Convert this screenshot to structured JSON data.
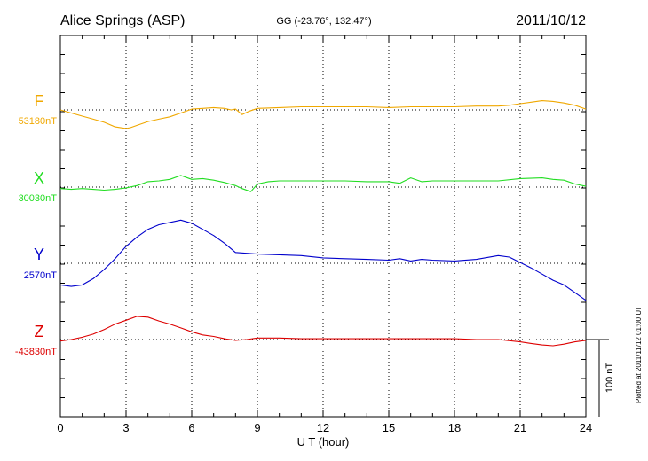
{
  "header": {
    "station": "Alice Springs (ASP)",
    "coords": "GG (-23.76°, 132.47°)",
    "date": "2011/10/12"
  },
  "footer": {
    "plotted_note": "Plotted at 2011/11/12 01:00 UT"
  },
  "chart_data": {
    "type": "line",
    "title": "Alice Springs (ASP)",
    "xlabel": "U T (hour)",
    "xlim": [
      0,
      24
    ],
    "xticks": [
      "0",
      "3",
      "6",
      "9",
      "12",
      "15",
      "18",
      "21",
      "24"
    ],
    "scale_bar": {
      "label": "100 nT",
      "value_nT": 100
    },
    "series": [
      {
        "name": "F",
        "baseline_label": "53180nT",
        "color": "#f0a800",
        "x": [
          0,
          0.5,
          1,
          1.5,
          2,
          2.5,
          3,
          3.2,
          3.5,
          4,
          4.5,
          5,
          5.5,
          6,
          6.5,
          7,
          7.5,
          7.8,
          8,
          8.3,
          8.6,
          9,
          10,
          11,
          12,
          13,
          14,
          15,
          16,
          17,
          18,
          19,
          20,
          20.5,
          21,
          21.5,
          22,
          22.5,
          23,
          23.5,
          24
        ],
        "values": [
          0,
          -4,
          -8,
          -12,
          -16,
          -22,
          -24,
          -23,
          -20,
          -15,
          -12,
          -9,
          -4,
          1,
          2,
          3,
          2,
          0,
          1,
          -6,
          -2,
          2,
          3,
          4,
          4,
          4,
          4,
          3,
          4,
          4,
          4,
          5,
          5,
          6,
          8,
          10,
          12,
          11,
          9,
          6,
          1
        ]
      },
      {
        "name": "X",
        "baseline_label": "30030nT",
        "color": "#22dd22",
        "x": [
          0,
          0.5,
          1,
          1.5,
          2,
          2.5,
          3,
          3.5,
          4,
          4.5,
          5,
          5.5,
          6,
          6.5,
          7,
          7.5,
          8,
          8.3,
          8.7,
          9,
          9.5,
          10,
          11,
          12,
          13,
          14,
          15,
          15.5,
          16,
          16.5,
          17,
          18,
          19,
          20,
          21,
          22,
          22.5,
          23,
          23.5,
          24
        ],
        "values": [
          -2,
          -3,
          -2,
          -3,
          -4,
          -3,
          -1,
          2,
          7,
          8,
          10,
          15,
          10,
          11,
          9,
          6,
          2,
          -2,
          -6,
          4,
          7,
          8,
          8,
          8,
          8,
          7,
          7,
          5,
          12,
          7,
          8,
          8,
          8,
          8,
          11,
          12,
          10,
          9,
          4,
          1
        ]
      },
      {
        "name": "Y",
        "baseline_label": "2570nT",
        "color": "#0000cc",
        "x": [
          0,
          0.5,
          1,
          1.5,
          2,
          2.5,
          3,
          3.5,
          4,
          4.5,
          5,
          5.5,
          6,
          6.5,
          7,
          7.5,
          8,
          8.5,
          9,
          10,
          11,
          12,
          13,
          14,
          15,
          15.5,
          16,
          16.5,
          17,
          18,
          19,
          20,
          20.5,
          21,
          21.5,
          22,
          22.5,
          23,
          23.5,
          24
        ],
        "values": [
          -28,
          -30,
          -28,
          -20,
          -8,
          6,
          22,
          34,
          44,
          50,
          53,
          56,
          52,
          44,
          36,
          26,
          14,
          13,
          12,
          11,
          10,
          7,
          6,
          5,
          4,
          6,
          3,
          5,
          4,
          3,
          5,
          10,
          8,
          1,
          -6,
          -14,
          -22,
          -28,
          -38,
          -48
        ]
      },
      {
        "name": "Z",
        "baseline_label": "-43830nT",
        "color": "#dd0000",
        "x": [
          0,
          0.5,
          1,
          1.5,
          2,
          2.5,
          3,
          3.5,
          4,
          4.5,
          5,
          5.5,
          6,
          6.5,
          7,
          7.5,
          8,
          8.5,
          9,
          10,
          11,
          12,
          13,
          14,
          15,
          16,
          17,
          18,
          19,
          20,
          21,
          21.5,
          22,
          22.5,
          23,
          23.5,
          24
        ],
        "values": [
          -2,
          0,
          3,
          7,
          13,
          20,
          25,
          30,
          29,
          24,
          20,
          15,
          10,
          6,
          4,
          1,
          -1,
          0,
          2,
          2,
          1,
          1,
          1,
          1,
          1,
          1,
          1,
          1,
          0,
          0,
          -3,
          -5,
          -7,
          -8,
          -6,
          -3,
          -1
        ]
      }
    ]
  }
}
